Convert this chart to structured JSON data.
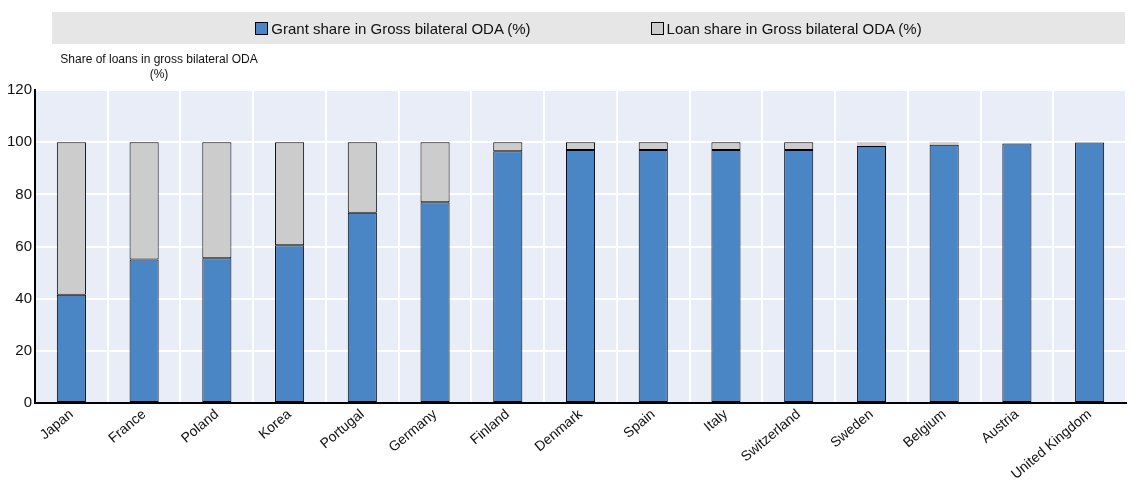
{
  "chart_data": {
    "type": "bar",
    "stacked": true,
    "ylabel": "Share of loans in gross bilateral ODA (%)",
    "categories": [
      "Japan",
      "France",
      "Poland",
      "Korea",
      "Portugal",
      "Germany",
      "Finland",
      "Denmark",
      "Spain",
      "Italy",
      "Switzerland",
      "Sweden",
      "Belgium",
      "Austria",
      "United Kingdom"
    ],
    "series": [
      {
        "name": "Grant share in Gross bilateral ODA (%)",
        "color": "#4a86c5",
        "values": [
          41.5,
          55,
          55.5,
          60.5,
          73,
          77,
          96.5,
          97,
          97,
          97,
          97,
          98.5,
          99,
          99.5,
          99.9
        ]
      },
      {
        "name": "Loan share  in Gross bilateral ODA (%)",
        "color": "#cccccc",
        "values": [
          58.5,
          45,
          44.5,
          39.5,
          27,
          23,
          3.5,
          3,
          3,
          3,
          3,
          1.5,
          1,
          null,
          null
        ]
      }
    ],
    "ylim": [
      0,
      120
    ],
    "yticks": [
      0,
      20,
      40,
      60,
      80,
      100,
      120
    ],
    "grid": true,
    "legend": "top"
  }
}
